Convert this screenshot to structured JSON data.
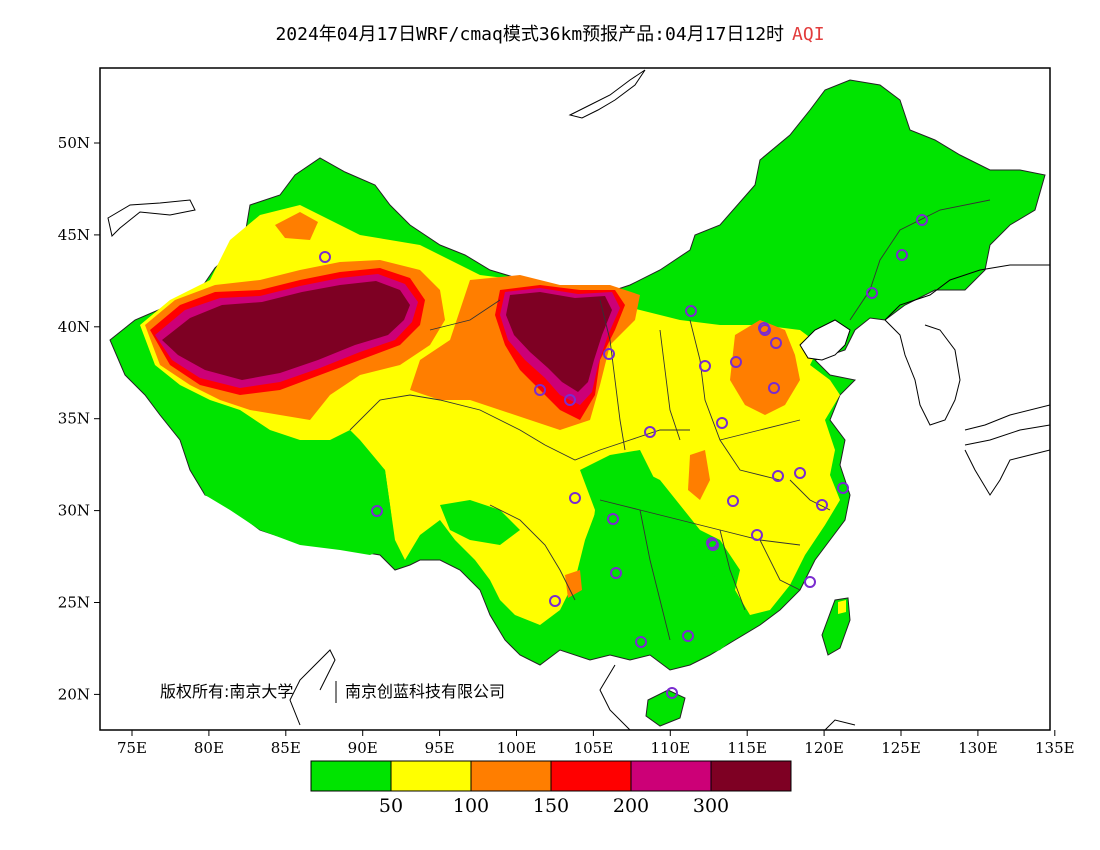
{
  "title": {
    "prefix": "2024年04月17日WRF/cmaq模式36km预报产品:04月17日12时",
    "variable": "AQI",
    "variable_color": "#e23c3c"
  },
  "axes": {
    "lon_labels": [
      "75E",
      "80E",
      "85E",
      "90E",
      "95E",
      "100E",
      "105E",
      "110E",
      "115E",
      "120E",
      "125E",
      "130E",
      "135E"
    ],
    "lat_labels": [
      "50N",
      "45N",
      "40N",
      "35N",
      "30N",
      "25N",
      "20N"
    ]
  },
  "copyright": {
    "left": "版权所有:南京大学",
    "right": "南京创蓝科技有限公司"
  },
  "legend": {
    "colors": [
      "#00e400",
      "#ffff00",
      "#ff7e00",
      "#ff0000",
      "#cc0077",
      "#7e0023"
    ],
    "labels": [
      "50",
      "100",
      "150",
      "200",
      "300"
    ]
  },
  "map_colors": {
    "good": "#00e400",
    "moderate": "#ffff00",
    "usg": "#ff7e00",
    "unhealthy": "#ff0000",
    "very_unhealthy": "#cc0077",
    "hazardous": "#7e0023"
  },
  "station_marker_color": "#7a2ccf",
  "station_count": 33
}
